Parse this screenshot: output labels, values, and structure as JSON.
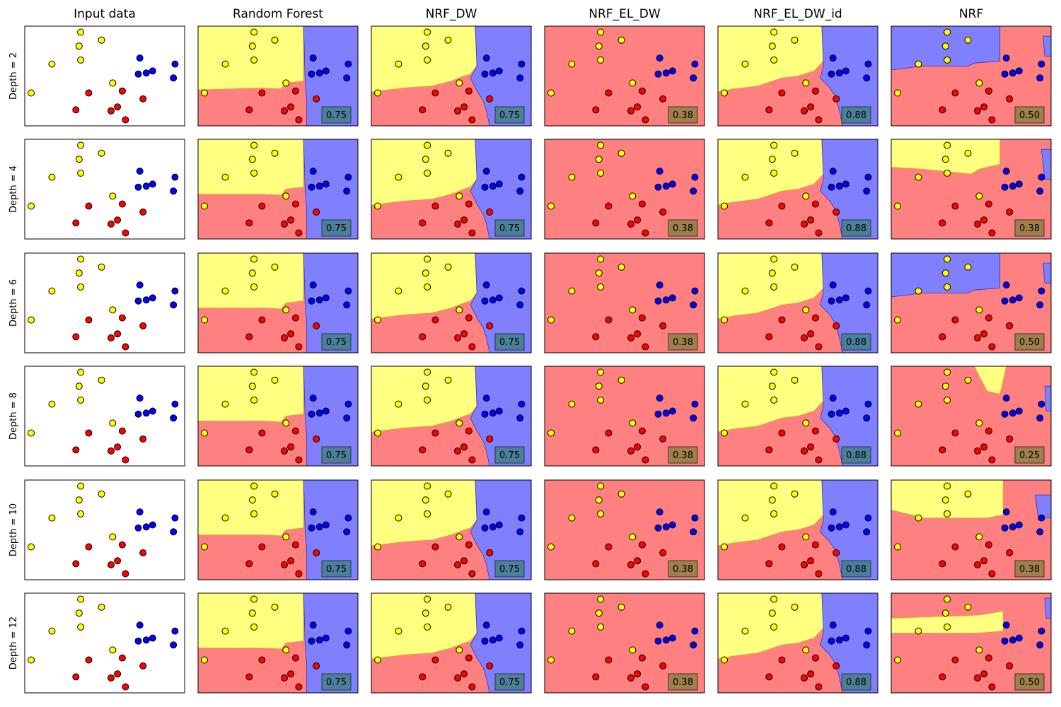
{
  "chart_data": {
    "type": "scatter",
    "title": "",
    "grid": false,
    "xlim": [
      0,
      1
    ],
    "ylim": [
      0,
      1
    ],
    "columns": [
      "Input data",
      "Random Forest",
      "NRF_DW",
      "NRF_EL_DW",
      "NRF_EL_DW_id",
      "NRF"
    ],
    "rows": [
      "Depth = 2",
      "Depth = 4",
      "Depth = 6",
      "Depth = 8",
      "Depth = 10",
      "Depth = 12"
    ],
    "points": [
      {
        "x": 0.04,
        "y": 0.33,
        "cls": "yellow"
      },
      {
        "x": 0.17,
        "y": 0.62,
        "cls": "yellow"
      },
      {
        "x": 0.35,
        "y": 0.94,
        "cls": "yellow"
      },
      {
        "x": 0.34,
        "y": 0.8,
        "cls": "yellow"
      },
      {
        "x": 0.35,
        "y": 0.66,
        "cls": "yellow"
      },
      {
        "x": 0.48,
        "y": 0.86,
        "cls": "yellow"
      },
      {
        "x": 0.55,
        "y": 0.43,
        "cls": "yellow"
      },
      {
        "x": 0.32,
        "y": 0.16,
        "cls": "red"
      },
      {
        "x": 0.4,
        "y": 0.33,
        "cls": "red"
      },
      {
        "x": 0.54,
        "y": 0.15,
        "cls": "red"
      },
      {
        "x": 0.58,
        "y": 0.19,
        "cls": "red"
      },
      {
        "x": 0.61,
        "y": 0.35,
        "cls": "red"
      },
      {
        "x": 0.63,
        "y": 0.06,
        "cls": "red"
      },
      {
        "x": 0.74,
        "y": 0.27,
        "cls": "red"
      },
      {
        "x": 0.72,
        "y": 0.68,
        "cls": "blue"
      },
      {
        "x": 0.71,
        "y": 0.52,
        "cls": "blue"
      },
      {
        "x": 0.76,
        "y": 0.53,
        "cls": "blue"
      },
      {
        "x": 0.8,
        "y": 0.55,
        "cls": "blue"
      },
      {
        "x": 0.94,
        "y": 0.62,
        "cls": "blue"
      },
      {
        "x": 0.93,
        "y": 0.48,
        "cls": "blue"
      }
    ],
    "scores": [
      [
        "0.75",
        "0.75",
        "0.38",
        "0.88",
        "0.50"
      ],
      [
        "0.75",
        "0.75",
        "0.38",
        "0.88",
        "0.38"
      ],
      [
        "0.75",
        "0.75",
        "0.38",
        "0.88",
        "0.50"
      ],
      [
        "0.75",
        "0.75",
        "0.38",
        "0.88",
        "0.25"
      ],
      [
        "0.75",
        "0.75",
        "0.38",
        "0.88",
        "0.38"
      ],
      [
        "0.75",
        "0.75",
        "0.38",
        "0.88",
        "0.50"
      ]
    ],
    "colors": {
      "region_yellow": "#ffff80",
      "region_red": "#ff8080",
      "region_blue": "#8080ff",
      "point_yellow": "#ffff00",
      "point_red": "#ff0000",
      "point_blue": "#0000ff",
      "score_high_bg": "#4a8099",
      "score_low_bg": "#a0804a"
    }
  }
}
